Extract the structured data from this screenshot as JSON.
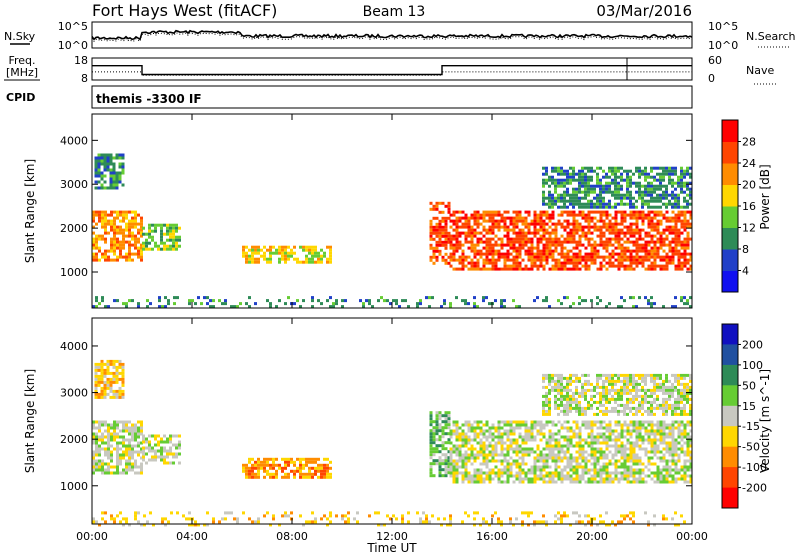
{
  "header": {
    "station": "Fort Hays West (fitACF)",
    "beam": "Beam 13",
    "date": "03/Mar/2016"
  },
  "status_panels": {
    "nsky": {
      "label": "N.Sky",
      "right_label": "N.Search",
      "left_ticks": [
        "10^5",
        "10^0"
      ],
      "right_ticks": [
        "10^5",
        "10^0"
      ]
    },
    "freq": {
      "label_line1": "Freq.",
      "label_line2": "[MHz]",
      "right_label": "Nave",
      "left_ticks": [
        "18",
        "8"
      ],
      "right_ticks": [
        "60",
        "0"
      ],
      "frequency_mhz": {
        "times_h": [
          0,
          2.0,
          2.0,
          14.0,
          14.0,
          24.0
        ],
        "values": [
          14.5,
          14.5,
          10.5,
          10.5,
          14.5,
          14.5
        ]
      },
      "nave": {
        "times_h": [
          0,
          2.0,
          2.0,
          14.0,
          14.0,
          24.0
        ],
        "values": [
          22,
          22,
          13,
          13,
          22,
          22
        ]
      }
    },
    "cpid": {
      "label": "CPID",
      "program": "themis -3300 IF"
    }
  },
  "chart_data": [
    {
      "type": "heatmap",
      "quantity": "power",
      "ylabel": "Slant Range [km]",
      "xlabel": "",
      "xlim_h": [
        0,
        24
      ],
      "ylim_km": [
        180,
        4600
      ],
      "yticks": [
        "1000",
        "2000",
        "3000",
        "4000"
      ],
      "colorbar": {
        "label": "Power [dB]",
        "ticks": [
          "4",
          "8",
          "12",
          "16",
          "20",
          "24",
          "28"
        ],
        "levels": [
          {
            "range": [
              0,
              4
            ],
            "color": "#1010f0"
          },
          {
            "range": [
              4,
              8
            ],
            "color": "#2040c8"
          },
          {
            "range": [
              8,
              12
            ],
            "color": "#2e8b57"
          },
          {
            "range": [
              12,
              16
            ],
            "color": "#66cc33"
          },
          {
            "range": [
              16,
              20
            ],
            "color": "#ffd700"
          },
          {
            "range": [
              20,
              24
            ],
            "color": "#ff8c00"
          },
          {
            "range": [
              24,
              28
            ],
            "color": "#ff4500"
          },
          {
            "range": [
              28,
              32
            ],
            "color": "#ff0000"
          }
        ]
      },
      "echo_regions": [
        {
          "t0": 0.0,
          "t1": 2.0,
          "r0": 1300,
          "r1": 2400,
          "level": 5
        },
        {
          "t0": 0.1,
          "t1": 1.3,
          "r0": 2900,
          "r1": 3700,
          "level": 2
        },
        {
          "t0": 2.0,
          "t1": 3.5,
          "r0": 1500,
          "r1": 2100,
          "level": 3
        },
        {
          "t0": 6.0,
          "t1": 9.5,
          "r0": 1200,
          "r1": 1600,
          "level": 4
        },
        {
          "t0": 13.5,
          "t1": 14.3,
          "r0": 1200,
          "r1": 2600,
          "level": 6
        },
        {
          "t0": 14.3,
          "t1": 24.0,
          "r0": 1100,
          "r1": 2400,
          "level": 6
        },
        {
          "t0": 18.0,
          "t1": 24.0,
          "r0": 2500,
          "r1": 3400,
          "level": 2
        },
        {
          "t0": 0.0,
          "t1": 24.0,
          "r0": 180,
          "r1": 450,
          "level": 2
        }
      ]
    },
    {
      "type": "heatmap",
      "quantity": "velocity",
      "ylabel": "Slant Range [km]",
      "xlabel": "Time UT",
      "xlim_h": [
        0,
        24
      ],
      "ylim_km": [
        180,
        4600
      ],
      "xticks": [
        "00:00",
        "04:00",
        "08:00",
        "12:00",
        "16:00",
        "20:00",
        "00:00"
      ],
      "yticks": [
        "1000",
        "2000",
        "3000",
        "4000"
      ],
      "colorbar": {
        "label": "Velocity [m s^-1]",
        "ticks": [
          "200",
          "100",
          "50",
          "15",
          "-15",
          "-50",
          "-100",
          "-200"
        ],
        "levels": [
          {
            "range": [
              200,
              300
            ],
            "color": "#1010c0"
          },
          {
            "range": [
              100,
              200
            ],
            "color": "#2050a0"
          },
          {
            "range": [
              50,
              100
            ],
            "color": "#2e8b57"
          },
          {
            "range": [
              15,
              50
            ],
            "color": "#66cc33"
          },
          {
            "range": [
              -15,
              15
            ],
            "color": "#c8c8c0"
          },
          {
            "range": [
              -50,
              -15
            ],
            "color": "#ffd700"
          },
          {
            "range": [
              -100,
              -50
            ],
            "color": "#ff8c00"
          },
          {
            "range": [
              -200,
              -100
            ],
            "color": "#ff4500"
          },
          {
            "range": [
              -300,
              -200
            ],
            "color": "#ff0000"
          }
        ]
      },
      "echo_regions": [
        {
          "t0": 0.0,
          "t1": 2.0,
          "r0": 1300,
          "r1": 2400,
          "level": 4
        },
        {
          "t0": 0.1,
          "t1": 1.3,
          "r0": 2900,
          "r1": 3700,
          "level": 5
        },
        {
          "t0": 2.0,
          "t1": 3.5,
          "r0": 1500,
          "r1": 2100,
          "level": 4
        },
        {
          "t0": 6.0,
          "t1": 9.5,
          "r0": 1200,
          "r1": 1600,
          "level": 6
        },
        {
          "t0": 13.5,
          "t1": 14.3,
          "r0": 1200,
          "r1": 2600,
          "level": 3
        },
        {
          "t0": 14.3,
          "t1": 24.0,
          "r0": 1100,
          "r1": 2400,
          "level": 4
        },
        {
          "t0": 18.0,
          "t1": 24.0,
          "r0": 2500,
          "r1": 3400,
          "level": 4
        },
        {
          "t0": 0.0,
          "t1": 24.0,
          "r0": 180,
          "r1": 450,
          "level": 5
        }
      ]
    }
  ]
}
